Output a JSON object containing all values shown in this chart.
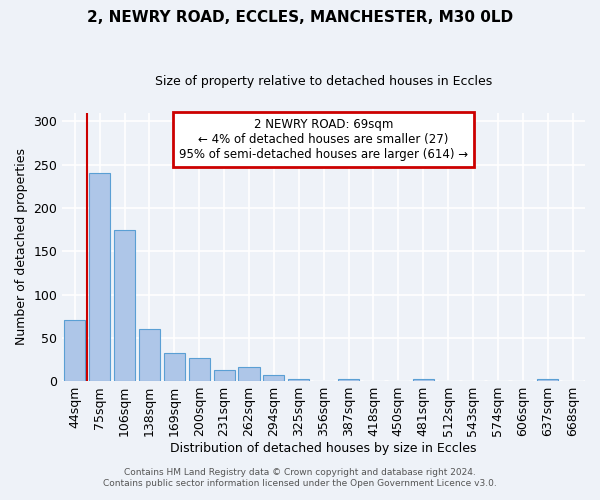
{
  "title": "2, NEWRY ROAD, ECCLES, MANCHESTER, M30 0LD",
  "subtitle": "Size of property relative to detached houses in Eccles",
  "xlabel": "Distribution of detached houses by size in Eccles",
  "ylabel": "Number of detached properties",
  "bar_labels": [
    "44sqm",
    "75sqm",
    "106sqm",
    "138sqm",
    "169sqm",
    "200sqm",
    "231sqm",
    "262sqm",
    "294sqm",
    "325sqm",
    "356sqm",
    "387sqm",
    "418sqm",
    "450sqm",
    "481sqm",
    "512sqm",
    "543sqm",
    "574sqm",
    "606sqm",
    "637sqm",
    "668sqm"
  ],
  "bar_values": [
    70,
    240,
    175,
    60,
    33,
    27,
    13,
    16,
    7,
    2,
    0,
    2,
    0,
    0,
    2,
    0,
    0,
    0,
    0,
    2,
    0
  ],
  "bar_color": "#aec6e8",
  "bar_edge_color": "#5a9fd4",
  "ylim": [
    0,
    310
  ],
  "yticks": [
    0,
    50,
    100,
    150,
    200,
    250,
    300
  ],
  "vline_x_index": 0,
  "vline_color": "#cc0000",
  "annotation_title": "2 NEWRY ROAD: 69sqm",
  "annotation_line1": "← 4% of detached houses are smaller (27)",
  "annotation_line2": "95% of semi-detached houses are larger (614) →",
  "annotation_box_color": "#cc0000",
  "footer_line1": "Contains HM Land Registry data © Crown copyright and database right 2024.",
  "footer_line2": "Contains public sector information licensed under the Open Government Licence v3.0.",
  "background_color": "#eef2f8",
  "grid_color": "#ffffff"
}
